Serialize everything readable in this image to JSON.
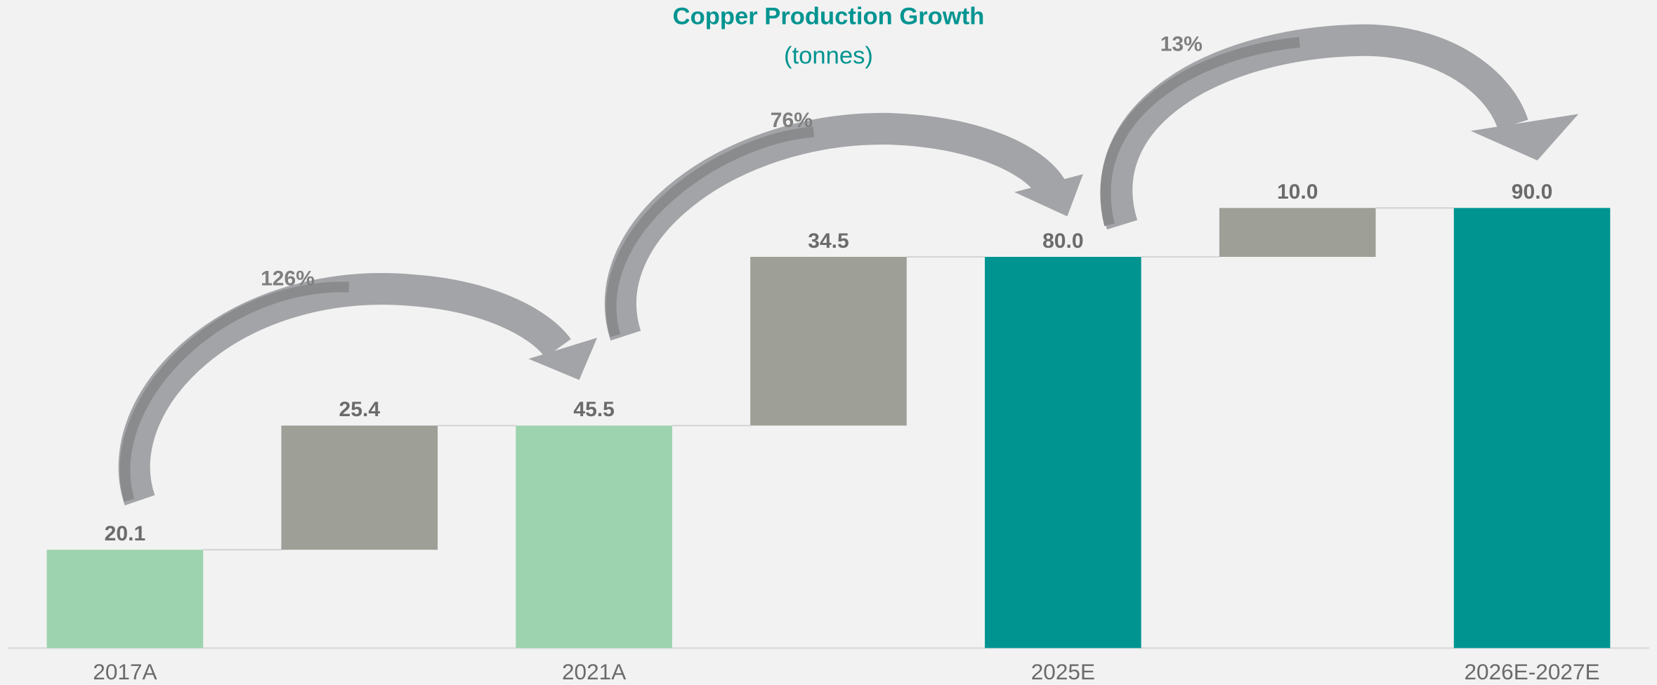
{
  "chart_data": {
    "type": "waterfall",
    "title": "Copper Production Growth",
    "subtitle": "(tonnes)",
    "categories": [
      "2017A",
      null,
      "2021A",
      null,
      "2025E",
      null,
      "2026E-2027E"
    ],
    "values": [
      20.1,
      25.4,
      45.5,
      34.5,
      80.0,
      10.0,
      90.0
    ],
    "value_labels": [
      "20.1",
      "25.4",
      "45.5",
      "34.5",
      "80.0",
      "10.0",
      "90.0"
    ],
    "kinds": [
      "total",
      "increase",
      "total",
      "increase",
      "total",
      "increase",
      "total"
    ],
    "colors": [
      "#9dd3ae",
      "#9e9f96",
      "#9dd3ae",
      "#9e9f96",
      "#009491",
      "#9e9f96",
      "#009491"
    ],
    "ylim": [
      0,
      100
    ],
    "annotations": [
      "126%",
      "76%",
      "13%"
    ]
  }
}
